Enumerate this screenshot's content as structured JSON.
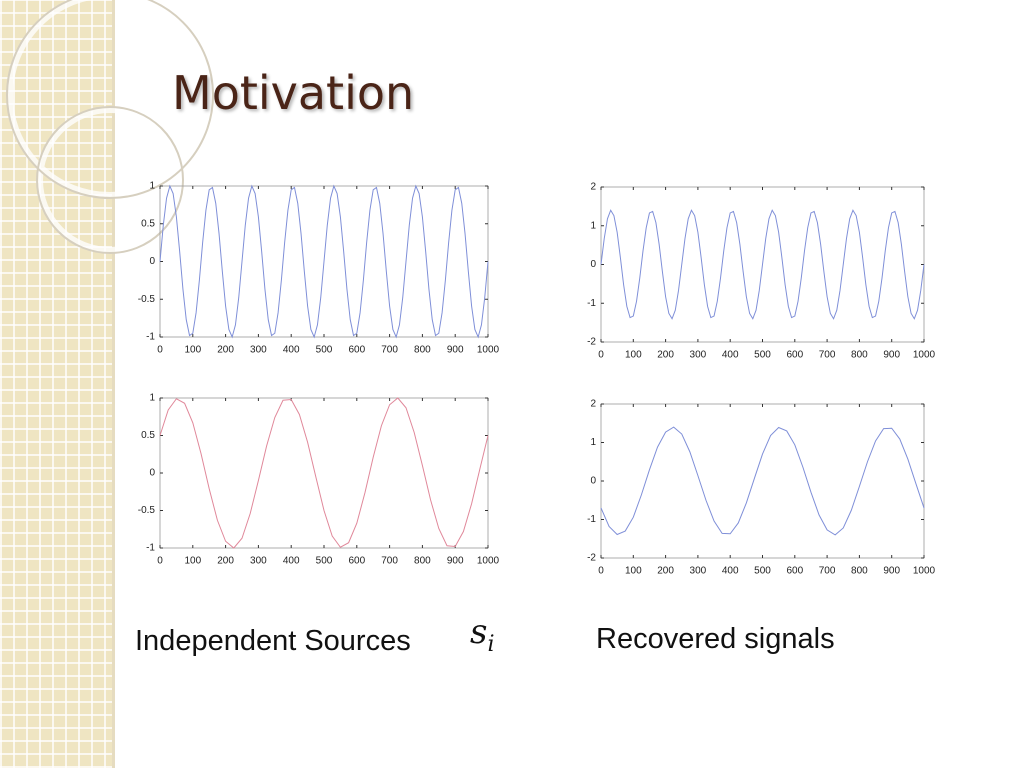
{
  "title": "Motivation",
  "captions": {
    "left": "Independent Sources",
    "math": {
      "base": "s",
      "subscript": "i"
    },
    "right": "Recovered signals"
  },
  "chart_data": [
    {
      "type": "line",
      "color": "#7f8fd8",
      "x": [
        0,
        10,
        20,
        30,
        40,
        50,
        60,
        70,
        80,
        90,
        100,
        110,
        120,
        130,
        140,
        150,
        160,
        170,
        180,
        190,
        200,
        210,
        220,
        230,
        240,
        250,
        260,
        270,
        280,
        290,
        300,
        310,
        320,
        330,
        340,
        350,
        360,
        370,
        380,
        390,
        400,
        410,
        420,
        430,
        440,
        450,
        460,
        470,
        480,
        490,
        500,
        510,
        520,
        530,
        540,
        550,
        560,
        570,
        580,
        590,
        600,
        610,
        620,
        630,
        640,
        650,
        660,
        670,
        680,
        690,
        700,
        710,
        720,
        730,
        740,
        750,
        760,
        770,
        780,
        790,
        800,
        810,
        820,
        830,
        840,
        850,
        860,
        870,
        880,
        890,
        900,
        910,
        920,
        930,
        940,
        950,
        960,
        970,
        980,
        990,
        1000
      ],
      "values": [
        0,
        0.48,
        0.84,
        1,
        0.9,
        0.59,
        0.13,
        -0.37,
        -0.77,
        -0.98,
        -0.95,
        -0.68,
        -0.25,
        0.25,
        0.68,
        0.95,
        0.98,
        0.77,
        0.37,
        -0.13,
        -0.59,
        -0.9,
        -1,
        -0.84,
        -0.48,
        0,
        0.48,
        0.84,
        1,
        0.9,
        0.59,
        0.13,
        -0.37,
        -0.77,
        -0.98,
        -0.95,
        -0.68,
        -0.25,
        0.25,
        0.68,
        0.95,
        0.98,
        0.77,
        0.37,
        -0.13,
        -0.59,
        -0.9,
        -1,
        -0.84,
        -0.48,
        0,
        0.48,
        0.84,
        1,
        0.9,
        0.59,
        0.13,
        -0.37,
        -0.77,
        -0.98,
        -0.95,
        -0.68,
        -0.25,
        0.25,
        0.68,
        0.95,
        0.98,
        0.77,
        0.37,
        -0.13,
        -0.59,
        -0.9,
        -1,
        -0.84,
        -0.48,
        0,
        0.48,
        0.84,
        1,
        0.9,
        0.59,
        0.13,
        -0.37,
        -0.77,
        -0.98,
        -0.95,
        -0.68,
        -0.25,
        0.25,
        0.68,
        0.95,
        0.98,
        0.77,
        0.37,
        -0.13,
        -0.59,
        -0.9,
        -1,
        -0.84,
        -0.48,
        0
      ],
      "xlim": [
        0,
        1000
      ],
      "ylim": [
        -1,
        1
      ],
      "xticks": [
        0,
        100,
        200,
        300,
        400,
        500,
        600,
        700,
        800,
        900,
        1000
      ],
      "yticks": [
        -1,
        -0.5,
        0,
        0.5,
        1
      ]
    },
    {
      "type": "line",
      "color": "#7f8fd8",
      "x": [
        0,
        10,
        20,
        30,
        40,
        50,
        60,
        70,
        80,
        90,
        100,
        110,
        120,
        130,
        140,
        150,
        160,
        170,
        180,
        190,
        200,
        210,
        220,
        230,
        240,
        250,
        260,
        270,
        280,
        290,
        300,
        310,
        320,
        330,
        340,
        350,
        360,
        370,
        380,
        390,
        400,
        410,
        420,
        430,
        440,
        450,
        460,
        470,
        480,
        490,
        500,
        510,
        520,
        530,
        540,
        550,
        560,
        570,
        580,
        590,
        600,
        610,
        620,
        630,
        640,
        650,
        660,
        670,
        680,
        690,
        700,
        710,
        720,
        730,
        740,
        750,
        760,
        770,
        780,
        790,
        800,
        810,
        820,
        830,
        840,
        850,
        860,
        870,
        880,
        890,
        900,
        910,
        920,
        930,
        940,
        950,
        960,
        970,
        980,
        990,
        1000
      ],
      "values": [
        0,
        0.67,
        1.18,
        1.4,
        1.26,
        0.83,
        0.18,
        -0.52,
        -1.08,
        -1.37,
        -1.33,
        -0.95,
        -0.35,
        0.35,
        0.95,
        1.33,
        1.37,
        1.08,
        0.52,
        -0.18,
        -0.83,
        -1.26,
        -1.4,
        -1.18,
        -0.67,
        0,
        0.67,
        1.18,
        1.4,
        1.26,
        0.83,
        0.18,
        -0.52,
        -1.08,
        -1.37,
        -1.33,
        -0.95,
        -0.35,
        0.35,
        0.95,
        1.33,
        1.37,
        1.08,
        0.52,
        -0.18,
        -0.83,
        -1.26,
        -1.4,
        -1.18,
        -0.67,
        0,
        0.67,
        1.18,
        1.4,
        1.26,
        0.83,
        0.18,
        -0.52,
        -1.08,
        -1.37,
        -1.33,
        -0.95,
        -0.35,
        0.35,
        0.95,
        1.33,
        1.37,
        1.08,
        0.52,
        -0.18,
        -0.83,
        -1.26,
        -1.4,
        -1.18,
        -0.67,
        0,
        0.67,
        1.18,
        1.4,
        1.26,
        0.83,
        0.18,
        -0.52,
        -1.08,
        -1.37,
        -1.33,
        -0.95,
        -0.35,
        0.35,
        0.95,
        1.33,
        1.37,
        1.08,
        0.52,
        -0.18,
        -0.83,
        -1.26,
        -1.4,
        -1.18,
        -0.67,
        0
      ],
      "xlim": [
        0,
        1000
      ],
      "ylim": [
        -2,
        2
      ],
      "xticks": [
        0,
        100,
        200,
        300,
        400,
        500,
        600,
        700,
        800,
        900,
        1000
      ],
      "yticks": [
        -2,
        -1,
        0,
        1,
        2
      ]
    },
    {
      "type": "line",
      "color": "#e0889a",
      "x": [
        0,
        25,
        50,
        75,
        100,
        125,
        150,
        175,
        200,
        225,
        250,
        275,
        300,
        325,
        350,
        375,
        400,
        425,
        450,
        475,
        500,
        525,
        550,
        575,
        600,
        625,
        650,
        675,
        700,
        725,
        750,
        775,
        800,
        825,
        850,
        875,
        900,
        925,
        950,
        975,
        1000
      ],
      "values": [
        0.5,
        0.84,
        0.99,
        0.93,
        0.67,
        0.26,
        -0.21,
        -0.63,
        -0.91,
        -1,
        -0.87,
        -0.54,
        -0.1,
        0.36,
        0.74,
        0.97,
        0.98,
        0.78,
        0.41,
        -0.05,
        -0.5,
        -0.84,
        -0.99,
        -0.93,
        -0.67,
        -0.26,
        0.21,
        0.63,
        0.91,
        1,
        0.87,
        0.54,
        0.1,
        -0.36,
        -0.74,
        -0.97,
        -0.98,
        -0.78,
        -0.41,
        0.05,
        0.5
      ],
      "xlim": [
        0,
        1000
      ],
      "ylim": [
        -1,
        1
      ],
      "xticks": [
        0,
        100,
        200,
        300,
        400,
        500,
        600,
        700,
        800,
        900,
        1000
      ],
      "yticks": [
        -1,
        -0.5,
        0,
        0.5,
        1
      ]
    },
    {
      "type": "line",
      "color": "#7f8fd8",
      "x": [
        0,
        25,
        50,
        75,
        100,
        125,
        150,
        175,
        200,
        225,
        250,
        275,
        300,
        325,
        350,
        375,
        400,
        425,
        450,
        475,
        500,
        525,
        550,
        575,
        600,
        625,
        650,
        675,
        700,
        725,
        750,
        775,
        800,
        825,
        850,
        875,
        900,
        925,
        950,
        975,
        1000
      ],
      "values": [
        -0.7,
        -1.18,
        -1.39,
        -1.3,
        -0.94,
        -0.36,
        0.29,
        0.88,
        1.27,
        1.4,
        1.22,
        0.76,
        0.14,
        -0.5,
        -1.04,
        -1.36,
        -1.37,
        -1.09,
        -0.57,
        0.07,
        0.7,
        1.18,
        1.39,
        1.3,
        0.94,
        0.36,
        -0.29,
        -0.88,
        -1.27,
        -1.4,
        -1.22,
        -0.76,
        -0.14,
        0.5,
        1.04,
        1.36,
        1.37,
        1.09,
        0.57,
        -0.07,
        -0.7
      ],
      "xlim": [
        0,
        1000
      ],
      "ylim": [
        -2,
        2
      ],
      "xticks": [
        0,
        100,
        200,
        300,
        400,
        500,
        600,
        700,
        800,
        900,
        1000
      ],
      "yticks": [
        -2,
        -1,
        0,
        1,
        2
      ]
    }
  ]
}
